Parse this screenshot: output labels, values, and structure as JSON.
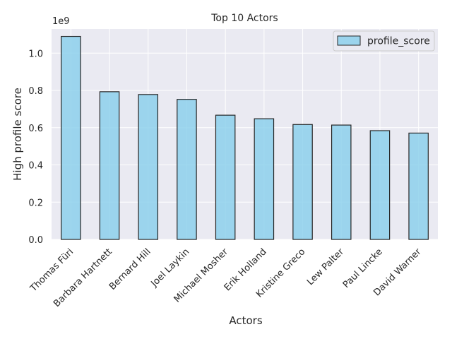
{
  "chart_data": {
    "type": "bar",
    "title": "Top 10 Actors",
    "xlabel": "Actors",
    "ylabel": "High profile score",
    "y_multiplier_label": "1e9",
    "categories": [
      "Thomas Füri",
      "Barbara Hartnett",
      "Bernard Hill",
      "Joel Laykin",
      "Michael Mosher",
      "Erik Holland",
      "Kristine Greco",
      "Lew Palter",
      "Paul Lincke",
      "David Warner"
    ],
    "series": [
      {
        "name": "profile_score",
        "values": [
          1090000000,
          793000000,
          778000000,
          752000000,
          667000000,
          648000000,
          617000000,
          614000000,
          584000000,
          571000000
        ]
      }
    ],
    "ylim": [
      0,
      1130000000
    ],
    "yticks": [
      0,
      200000000,
      400000000,
      600000000,
      800000000,
      1000000000
    ],
    "ytick_labels": [
      "0.0",
      "0.2",
      "0.4",
      "0.6",
      "0.8",
      "1.0"
    ],
    "grid": true,
    "legend_position": "top-right",
    "colors": {
      "bar_fill": "#87ceeb",
      "bar_edge": "#262626",
      "plot_bg": "#eaeaf2",
      "grid": "#ffffff"
    }
  }
}
